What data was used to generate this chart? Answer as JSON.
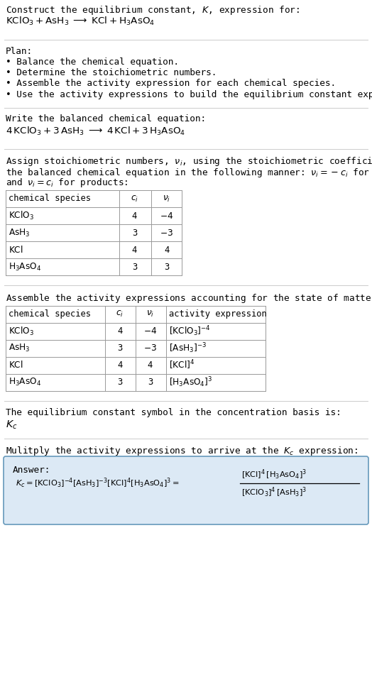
{
  "title_line1": "Construct the equilibrium constant, $K$, expression for:",
  "title_line2": "$\\mathrm{KClO_3 + AsH_3 \\;\\longrightarrow\\; KCl + H_3AsO_4}$",
  "plan_header": "Plan:",
  "plan_bullets": [
    "Balance the chemical equation.",
    "Determine the stoichiometric numbers.",
    "Assemble the activity expression for each chemical species.",
    "Use the activity expressions to build the equilibrium constant expression."
  ],
  "balanced_header": "Write the balanced chemical equation:",
  "balanced_eq": "$4\\,\\mathrm{KClO_3} + 3\\,\\mathrm{AsH_3} \\;\\longrightarrow\\; 4\\,\\mathrm{KCl} + 3\\,\\mathrm{H_3AsO_4}$",
  "stoich_intro1": "Assign stoichiometric numbers, $\\nu_i$, using the stoichiometric coefficients, $c_i$, from",
  "stoich_intro2": "the balanced chemical equation in the following manner: $\\nu_i = -c_i$ for reactants",
  "stoich_intro3": "and $\\nu_i = c_i$ for products:",
  "table1_headers": [
    "chemical species",
    "$c_i$",
    "$\\nu_i$"
  ],
  "table1_col_species": [
    "$\\mathrm{KClO_3}$",
    "$\\mathrm{AsH_3}$",
    "$\\mathrm{KCl}$",
    "$\\mathrm{H_3AsO_4}$"
  ],
  "table1_col_ci": [
    "4",
    "3",
    "4",
    "3"
  ],
  "table1_col_vi": [
    "$-4$",
    "$-3$",
    "4",
    "3"
  ],
  "activity_intro": "Assemble the activity expressions accounting for the state of matter and $\\nu_i$:",
  "table2_headers": [
    "chemical species",
    "$c_i$",
    "$\\nu_i$",
    "activity expression"
  ],
  "table2_col_species": [
    "$\\mathrm{KClO_3}$",
    "$\\mathrm{AsH_3}$",
    "$\\mathrm{KCl}$",
    "$\\mathrm{H_3AsO_4}$"
  ],
  "table2_col_ci": [
    "4",
    "3",
    "4",
    "3"
  ],
  "table2_col_vi": [
    "$-4$",
    "$-3$",
    "4",
    "3"
  ],
  "table2_col_act": [
    "$[\\mathrm{KClO_3}]^{-4}$",
    "$[\\mathrm{AsH_3}]^{-3}$",
    "$[\\mathrm{KCl}]^{4}$",
    "$[\\mathrm{H_3AsO_4}]^{3}$"
  ],
  "kc_intro": "The equilibrium constant symbol in the concentration basis is:",
  "kc_symbol": "$K_c$",
  "multiply_intro": "Mulitply the activity expressions to arrive at the $K_c$ expression:",
  "answer_label": "Answer:",
  "bg_color": "#ffffff",
  "text_color": "#000000",
  "table_border_color": "#999999",
  "answer_box_bg": "#dce9f5",
  "answer_box_border": "#6699bb",
  "hline_color": "#cccccc",
  "font_family": "monospace"
}
